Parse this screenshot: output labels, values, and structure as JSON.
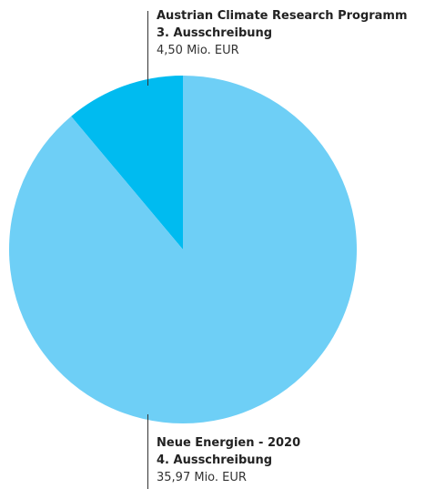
{
  "chart_data": {
    "type": "pie",
    "slices": [
      {
        "name_line1": "Austrian Climate Research Programm",
        "name_line2": "3. Ausschreibung",
        "value": 4.5,
        "value_label": "4,50 Mio. EUR",
        "color": "#00bbf0"
      },
      {
        "name_line1": "Neue Energien - 2020",
        "name_line2": "4. Ausschreibung",
        "value": 35.97,
        "value_label": "35,97 Mio. EUR",
        "color": "#6ecff6"
      }
    ],
    "start_angle": "top",
    "direction": "counterclockwise",
    "legend": "none",
    "title": ""
  }
}
